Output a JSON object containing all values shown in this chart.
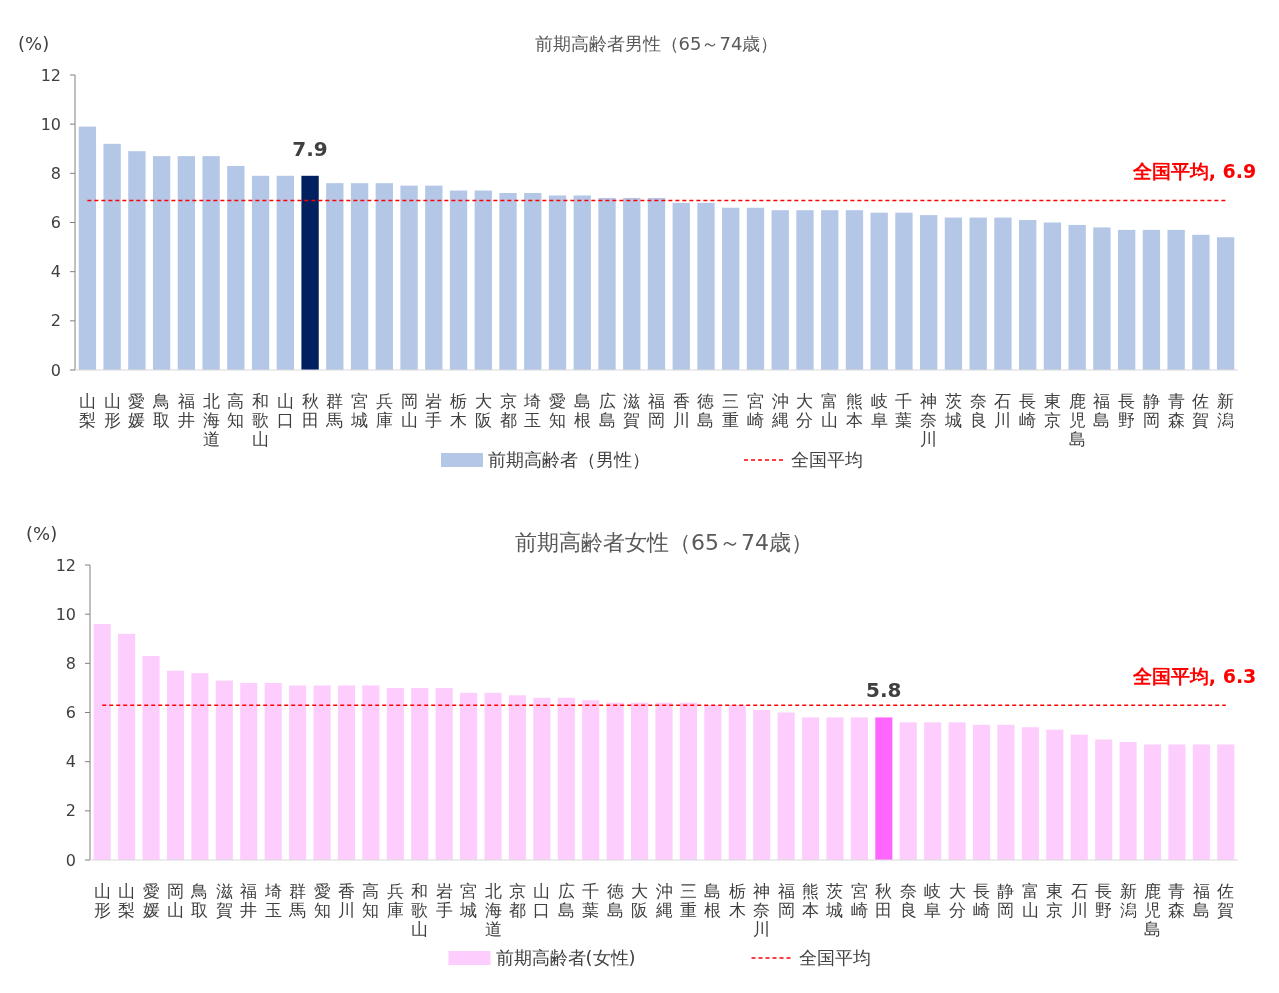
{
  "chart_data": [
    {
      "type": "bar",
      "title": "前期高齢者男性（65～74歳）",
      "ylabel": "(%)",
      "ylim": [
        0,
        12
      ],
      "yticks": [
        0,
        2,
        4,
        6,
        8,
        10,
        12
      ],
      "grid": false,
      "legend": "bottom",
      "categories": [
        "山梨",
        "山形",
        "愛媛",
        "鳥取",
        "福井",
        "北海道",
        "高知",
        "和歌山",
        "山口",
        "秋田",
        "群馬",
        "宮城",
        "兵庫",
        "岡山",
        "岩手",
        "栃木",
        "大阪",
        "京都",
        "埼玉",
        "愛知",
        "島根",
        "広島",
        "滋賀",
        "福岡",
        "香川",
        "徳島",
        "三重",
        "宮崎",
        "沖縄",
        "大分",
        "富山",
        "熊本",
        "岐阜",
        "千葉",
        "神奈川",
        "茨城",
        "奈良",
        "石川",
        "長崎",
        "東京",
        "鹿児島",
        "福島",
        "長野",
        "静岡",
        "青森",
        "佐賀",
        "新潟"
      ],
      "series": [
        {
          "name": "前期高齢者（男性）",
          "color": "#b4c7e7",
          "colors": [
            "#b4c7e7",
            "#b4c7e7",
            "#b4c7e7",
            "#b4c7e7",
            "#b4c7e7",
            "#b4c7e7",
            "#b4c7e7",
            "#b4c7e7",
            "#b4c7e7",
            "#002060",
            "#b4c7e7",
            "#b4c7e7",
            "#b4c7e7",
            "#b4c7e7",
            "#b4c7e7",
            "#b4c7e7",
            "#b4c7e7",
            "#b4c7e7",
            "#b4c7e7",
            "#b4c7e7",
            "#b4c7e7",
            "#b4c7e7",
            "#b4c7e7",
            "#b4c7e7",
            "#b4c7e7",
            "#b4c7e7",
            "#b4c7e7",
            "#b4c7e7",
            "#b4c7e7",
            "#b4c7e7",
            "#b4c7e7",
            "#b4c7e7",
            "#b4c7e7",
            "#b4c7e7",
            "#b4c7e7",
            "#b4c7e7",
            "#b4c7e7",
            "#b4c7e7",
            "#b4c7e7",
            "#b4c7e7",
            "#b4c7e7",
            "#b4c7e7",
            "#b4c7e7",
            "#b4c7e7",
            "#b4c7e7",
            "#b4c7e7",
            "#b4c7e7"
          ],
          "values": [
            9.9,
            9.2,
            8.9,
            8.7,
            8.7,
            8.7,
            8.3,
            7.9,
            7.9,
            7.9,
            7.6,
            7.6,
            7.6,
            7.5,
            7.5,
            7.3,
            7.3,
            7.2,
            7.2,
            7.1,
            7.1,
            7.0,
            7.0,
            7.0,
            6.8,
            6.8,
            6.6,
            6.6,
            6.5,
            6.5,
            6.5,
            6.5,
            6.4,
            6.4,
            6.3,
            6.2,
            6.2,
            6.2,
            6.1,
            6.0,
            5.9,
            5.8,
            5.7,
            5.7,
            5.7,
            5.5,
            5.4
          ],
          "value_labels": [
            null,
            null,
            null,
            null,
            null,
            null,
            null,
            null,
            null,
            "7.9",
            null,
            null,
            null,
            null,
            null,
            null,
            null,
            null,
            null,
            null,
            null,
            null,
            null,
            null,
            null,
            null,
            null,
            null,
            null,
            null,
            null,
            null,
            null,
            null,
            null,
            null,
            null,
            null,
            null,
            null,
            null,
            null,
            null,
            null,
            null,
            null,
            null
          ]
        },
        {
          "type": "line",
          "name": "全国平均",
          "color": "#ff0000",
          "line_style": "dashed",
          "marker": "none",
          "values": [
            6.9,
            6.9,
            6.9,
            6.9,
            6.9,
            6.9,
            6.9,
            6.9,
            6.9,
            6.9,
            6.9,
            6.9,
            6.9,
            6.9,
            6.9,
            6.9,
            6.9,
            6.9,
            6.9,
            6.9,
            6.9,
            6.9,
            6.9,
            6.9,
            6.9,
            6.9,
            6.9,
            6.9,
            6.9,
            6.9,
            6.9,
            6.9,
            6.9,
            6.9,
            6.9,
            6.9,
            6.9,
            6.9,
            6.9,
            6.9,
            6.9,
            6.9,
            6.9,
            6.9,
            6.9,
            6.9,
            6.9
          ]
        }
      ],
      "annotations": [
        {
          "text": "全国平均, 6.9",
          "x": "新潟",
          "y": 6.9
        }
      ]
    },
    {
      "type": "bar",
      "title": "前期高齢者女性（65～74歳）",
      "ylabel": "(%)",
      "ylim": [
        0,
        12
      ],
      "yticks": [
        0,
        2,
        4,
        6,
        8,
        10,
        12
      ],
      "grid": false,
      "legend": "bottom",
      "categories": [
        "山形",
        "山梨",
        "愛媛",
        "岡山",
        "鳥取",
        "滋賀",
        "福井",
        "埼玉",
        "群馬",
        "愛知",
        "香川",
        "高知",
        "兵庫",
        "和歌山",
        "岩手",
        "宮城",
        "北海道",
        "京都",
        "山口",
        "広島",
        "千葉",
        "徳島",
        "大阪",
        "沖縄",
        "三重",
        "島根",
        "栃木",
        "神奈川",
        "福岡",
        "熊本",
        "茨城",
        "宮崎",
        "秋田",
        "奈良",
        "岐阜",
        "大分",
        "長崎",
        "静岡",
        "富山",
        "東京",
        "石川",
        "長野",
        "新潟",
        "鹿児島",
        "青森",
        "福島",
        "佐賀"
      ],
      "series": [
        {
          "name": "前期高齢者(女性)",
          "color": "#fdcdfd",
          "colors": [
            "#fdcdfd",
            "#fdcdfd",
            "#fdcdfd",
            "#fdcdfd",
            "#fdcdfd",
            "#fdcdfd",
            "#fdcdfd",
            "#fdcdfd",
            "#fdcdfd",
            "#fdcdfd",
            "#fdcdfd",
            "#fdcdfd",
            "#fdcdfd",
            "#fdcdfd",
            "#fdcdfd",
            "#fdcdfd",
            "#fdcdfd",
            "#fdcdfd",
            "#fdcdfd",
            "#fdcdfd",
            "#fdcdfd",
            "#fdcdfd",
            "#fdcdfd",
            "#fdcdfd",
            "#fdcdfd",
            "#fdcdfd",
            "#fdcdfd",
            "#fdcdfd",
            "#fdcdfd",
            "#fdcdfd",
            "#fdcdfd",
            "#fdcdfd",
            "#ff66ff",
            "#fdcdfd",
            "#fdcdfd",
            "#fdcdfd",
            "#fdcdfd",
            "#fdcdfd",
            "#fdcdfd",
            "#fdcdfd",
            "#fdcdfd",
            "#fdcdfd",
            "#fdcdfd",
            "#fdcdfd",
            "#fdcdfd",
            "#fdcdfd",
            "#fdcdfd"
          ],
          "values": [
            9.6,
            9.2,
            8.3,
            7.7,
            7.6,
            7.3,
            7.2,
            7.2,
            7.1,
            7.1,
            7.1,
            7.1,
            7.0,
            7.0,
            7.0,
            6.8,
            6.8,
            6.7,
            6.6,
            6.6,
            6.5,
            6.4,
            6.4,
            6.4,
            6.4,
            6.3,
            6.3,
            6.1,
            6.0,
            5.8,
            5.8,
            5.8,
            5.8,
            5.6,
            5.6,
            5.6,
            5.5,
            5.5,
            5.4,
            5.3,
            5.1,
            4.9,
            4.8,
            4.7,
            4.7,
            4.7,
            4.7
          ],
          "value_labels": [
            null,
            null,
            null,
            null,
            null,
            null,
            null,
            null,
            null,
            null,
            null,
            null,
            null,
            null,
            null,
            null,
            null,
            null,
            null,
            null,
            null,
            null,
            null,
            null,
            null,
            null,
            null,
            null,
            null,
            null,
            null,
            null,
            "5.8",
            null,
            null,
            null,
            null,
            null,
            null,
            null,
            null,
            null,
            null,
            null,
            null,
            null,
            null
          ]
        },
        {
          "type": "line",
          "name": "全国平均",
          "color": "#ff0000",
          "line_style": "dashed",
          "marker": "none",
          "values": [
            6.3,
            6.3,
            6.3,
            6.3,
            6.3,
            6.3,
            6.3,
            6.3,
            6.3,
            6.3,
            6.3,
            6.3,
            6.3,
            6.3,
            6.3,
            6.3,
            6.3,
            6.3,
            6.3,
            6.3,
            6.3,
            6.3,
            6.3,
            6.3,
            6.3,
            6.3,
            6.3,
            6.3,
            6.3,
            6.3,
            6.3,
            6.3,
            6.3,
            6.3,
            6.3,
            6.3,
            6.3,
            6.3,
            6.3,
            6.3,
            6.3,
            6.3,
            6.3,
            6.3,
            6.3,
            6.3,
            6.3
          ]
        }
      ],
      "annotations": [
        {
          "text": "全国平均, 6.3",
          "x": "佐賀",
          "y": 6.3
        }
      ]
    }
  ]
}
